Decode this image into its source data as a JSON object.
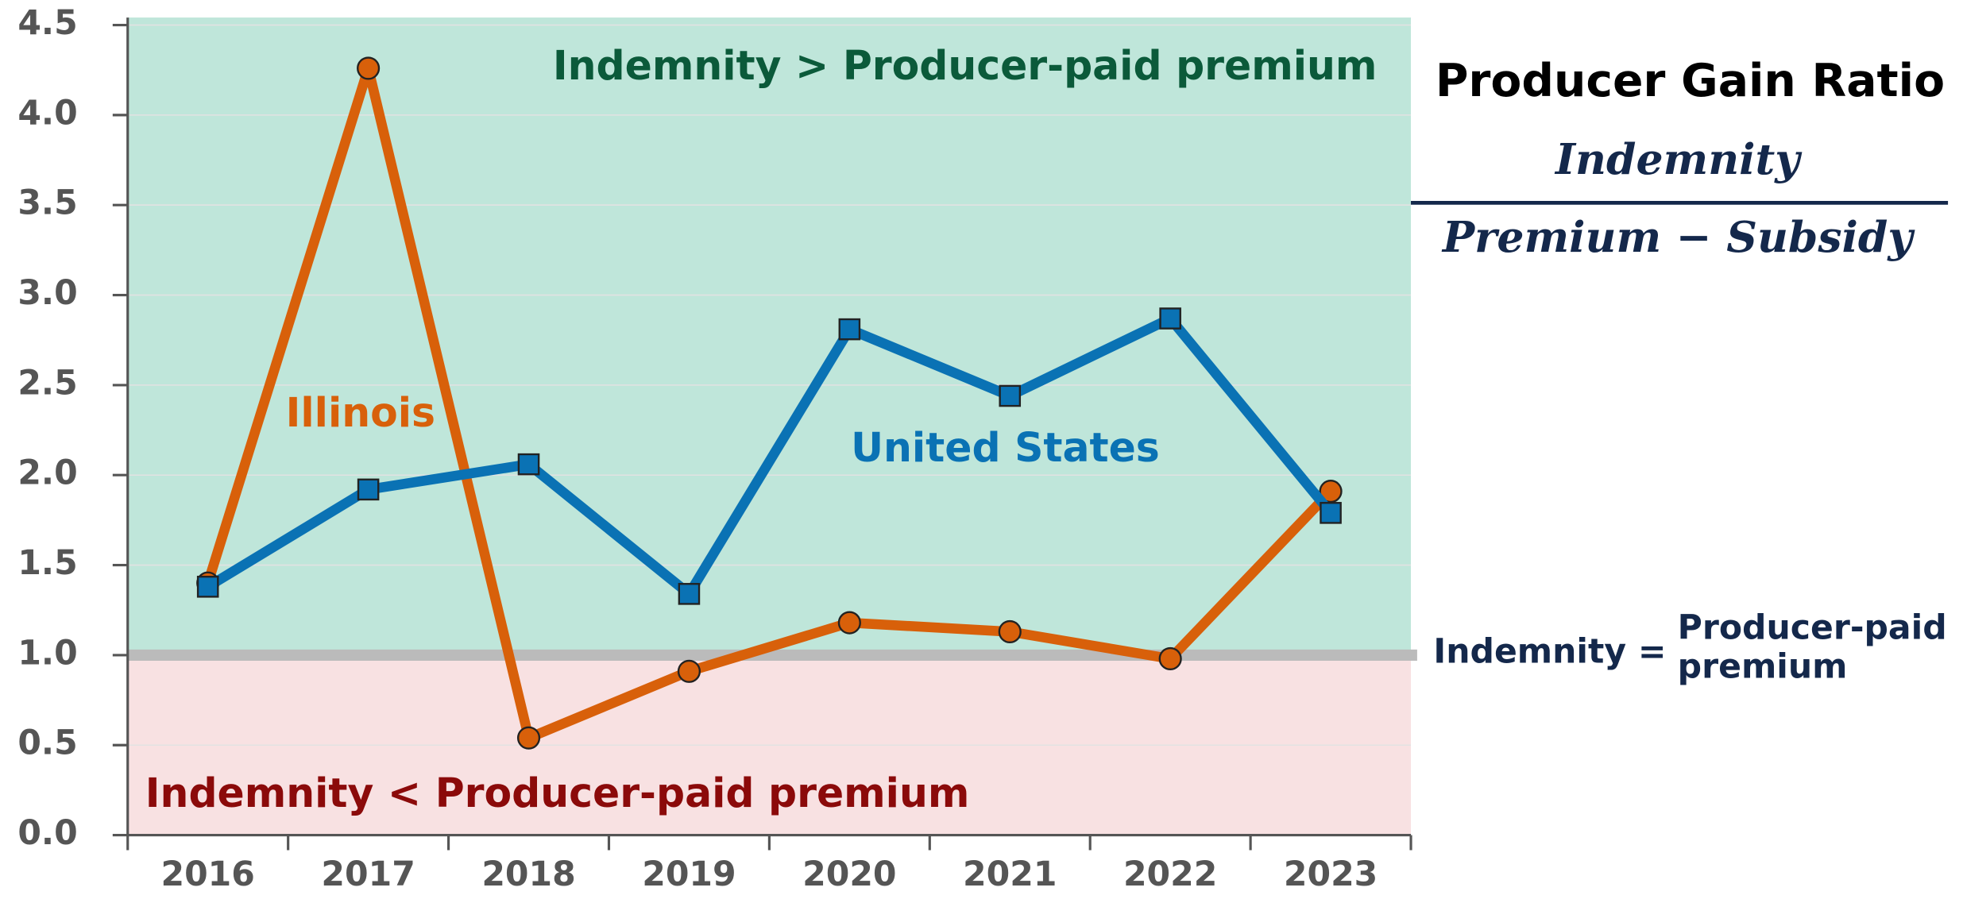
{
  "chart_data": {
    "type": "line",
    "categories": [
      "2016",
      "2017",
      "2018",
      "2019",
      "2020",
      "2021",
      "2022",
      "2023"
    ],
    "series": [
      {
        "name": "Illinois",
        "color": "#d8600a",
        "marker": "circle",
        "values": [
          1.4,
          4.26,
          0.54,
          0.91,
          1.18,
          1.13,
          0.98,
          1.91
        ]
      },
      {
        "name": "United States",
        "color": "#0a72b4",
        "marker": "square",
        "values": [
          1.38,
          1.92,
          2.06,
          1.34,
          2.81,
          2.44,
          2.87,
          1.79
        ]
      }
    ],
    "ylim": [
      0,
      4.5
    ],
    "yticks": [
      {
        "value": 0,
        "label": "0.0"
      },
      0.5,
      {
        "value": 1,
        "label": "1.0"
      },
      1.5,
      {
        "value": 2,
        "label": "2.0"
      },
      2.5,
      {
        "value": 3,
        "label": "3.0"
      },
      3.5,
      {
        "value": 4,
        "label": "4.0"
      },
      4.5
    ],
    "grid": true,
    "reference_line": 1,
    "annotations": {
      "above": "Indemnity > Producer-paid premium",
      "below": "Indemnity < Producer-paid premium",
      "ratio_title": "Producer Gain Ratio",
      "numerator": "Indemnity",
      "denominator": "Premium − Subsidy",
      "line_left": "Indemnity =",
      "line_right_1": "Producer-paid",
      "line_right_2": "premium"
    }
  }
}
